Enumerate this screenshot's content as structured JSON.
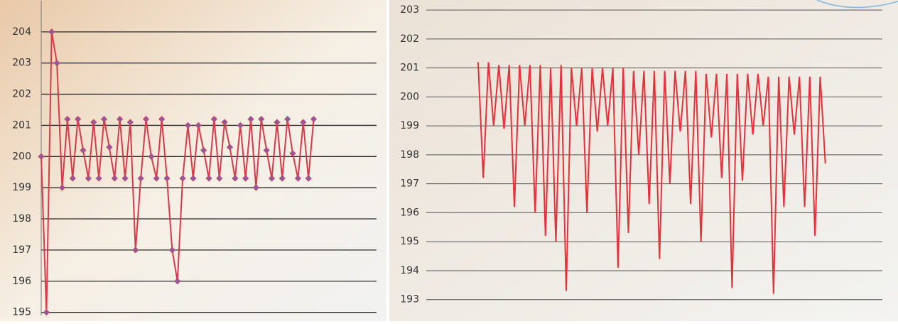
{
  "chart_data": [
    {
      "type": "line",
      "grid": true,
      "ylim": [
        194.9,
        205
      ],
      "yticks": [
        195,
        196,
        197,
        198,
        199,
        200,
        201,
        202,
        203,
        204
      ],
      "xlim": [
        0,
        64
      ],
      "series": [
        {
          "color": "#d83a4a",
          "marker_color": "#8a5ca8",
          "values": [
            200,
            195,
            204,
            203,
            199,
            201.2,
            199.3,
            201.2,
            200.2,
            199.3,
            201.1,
            199.3,
            201.2,
            200.3,
            199.3,
            201.2,
            199.3,
            201.1,
            197,
            199.3,
            201.2,
            200,
            199.3,
            201.2,
            199.3,
            197,
            196,
            199.3,
            201,
            199.3,
            201,
            200.2,
            199.3,
            201.2,
            199.3,
            201.1,
            200.3,
            199.3,
            201,
            199.3,
            201.2,
            199,
            201.2,
            200.2,
            199.3,
            201.1,
            199.3,
            201.2,
            200.1,
            199.3,
            201.1,
            199.3,
            201.2
          ]
        }
      ]
    },
    {
      "type": "line",
      "grid": true,
      "ylim": [
        192.6,
        203.2
      ],
      "yticks": [
        193,
        194,
        195,
        196,
        197,
        198,
        199,
        200,
        201,
        202,
        203
      ],
      "xlim": [
        -10,
        78
      ],
      "series": [
        {
          "color": "#e8303a",
          "values": [
            201.2,
            197.2,
            201.2,
            199,
            201.1,
            198.9,
            201.1,
            196.2,
            201.1,
            199,
            201.1,
            196,
            201.1,
            195.2,
            201,
            195,
            201.1,
            193.3,
            201,
            199,
            201,
            196,
            201,
            198.8,
            201,
            199,
            201,
            194.1,
            201,
            195.3,
            200.9,
            198,
            200.9,
            196.3,
            200.9,
            194.4,
            200.9,
            197,
            200.9,
            198.8,
            200.9,
            196.3,
            200.9,
            195,
            200.8,
            198.6,
            200.8,
            197.2,
            200.8,
            193.4,
            200.8,
            197.1,
            200.8,
            198.7,
            200.8,
            199,
            200.7,
            193.2,
            200.7,
            196.2,
            200.7,
            198.7,
            200.7,
            196.2,
            200.7,
            195.2,
            200.7,
            197.7
          ]
        }
      ]
    }
  ]
}
